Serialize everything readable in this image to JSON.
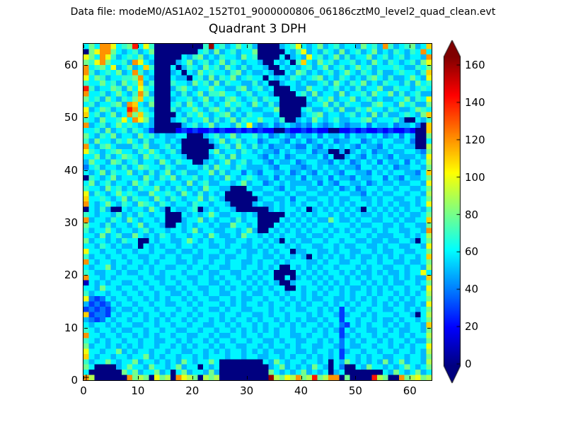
{
  "header": {
    "text": "Data file: modeM0/AS1A02_152T01_9000000806_06186cztM0_level2_quad_clean.evt"
  },
  "chart_data": {
    "type": "heatmap",
    "title": "Quadrant 3 DPH",
    "x_ticks": [
      0,
      10,
      20,
      30,
      40,
      50,
      60
    ],
    "y_ticks": [
      0,
      10,
      20,
      30,
      40,
      50,
      60
    ],
    "x_range": [
      0,
      64
    ],
    "y_range": [
      0,
      64
    ],
    "grid_size": [
      64,
      64
    ],
    "colormap": "jet",
    "colorbar": {
      "ticks": [
        0,
        20,
        40,
        60,
        80,
        100,
        120,
        140,
        160
      ],
      "vmin": 0,
      "vmax": 164,
      "extend": "both"
    },
    "value_encoding": {
      "chars": "0123456789ABCDEFG",
      "value_per_step": 10,
      "note": "each char is one cell; value = index(char)*10 counts; rows listed top (y=63) to bottom (y=0), 64 chars left to right"
    },
    "origin_marker": "+",
    "rows_top_to_bottom": [
      "686CCA678E6A70000000007G675686750000567A656856756658675C7567856B",
      "08ACC86567568000000006758567566800000657A56576585675685 6576576C",
      "A86CA7567685600000657856576658670000605 65A6756857566856 75675665C",
      "87AC86675CA650000568567568576566500656 07B65867566756586 57656758A",
      "C6786A56856B7000605765867586575665006565675685675686756667655768",
      "C75676856C75600056065867665785655650065875656756865765755676657B",
      "A687566778C650006550675857685676606565765678565765657865 7556865A",
      "7668675867B5700076658675857665575600566565567586576856576 6575867",
      "E756687586A76000578656686655785675600065586656756575668557665676",
      "C667568657C850006575685778665675665000067585665856675866 85756755",
      "8675865768B67000566756856578656757660000065768566856756556685 76A",
      "67566785CB65800067586576568676586575000005668575766557866586 7558",
      "A5687566EC76500075668657865756655668000067556758557686657655 6876",
      "B6756856C8B7600006576865678565766556000056785665675658575567658B",
      "7658667A6CA850005675668575685766866570056586567556678566 67500657",
      "C567568676565000005675685665 86A5456456545465456545564655 6455640B",
      "66758567576530000232322323223232322003223232200223232232 3223200B",
      "86576856658675655660005675685667564565465564655646556564 56465008",
      "7586657686575665650000056856756645665465645656455664565665564006",
      "C65786555768556756000000567586575645565446546565654655465 6655009",
      "A765678665768656750000068566576565546565564550050565645565566548",
      "66857568765867656650000567585666546564566556460056546565 4655565A",
      "58665875675665865766005656856756654655645665546564565646 55646569",
      "46756657568766576556657586657655565466554565655655466565 64556658",
      "65685766856575685675566857566465466556456546565466554656 5665546B",
      "07656856665865768566756565865676556465564655646554655664 65465568",
      "68567566586756656658567556656856645656555564654665564565 5655665A",
      "76658675657668565765658665500065566546566556556456456656 65665568",
      "A57656867655866765865756560000066556656556655656655465655 6656659",
      "B667656857665865765668576500000056655646655665655665565665566568",
      "C65686576587657656657665665000056556565656656565656656565655656A",
      "06575006566586506556705656650000005656656056565656506565 65656657",
      "76566575657656600065656865566565000006565656656565655656 56565568",
      "C566576586566560005668565665756600006565656558655656655665 65566B",
      "86657566568566500656566565586656000656565656656665655665 56566558",
      "75668656656756656656856655665685006565656566565656566565 6655665C",
      "66585675586565765665665865565866565656655655656665665655 56656569",
      "85665657660065665568656566556656656506565566566566556556 55665068",
      "66576565560656566566566556566556565665656655665655665565 6655665A",
      "A66566566566566556556566656656556565660556655656655665655 6655668",
      "75665665665566566566556556556656655656565065656565655656 5656656B",
      "C65665665665656665565665665665565665656665565665566566566 5565568",
      "65668565665656655665665665566566565600656565665666565665 56656659",
      "76556656556656566656656556655665656000065656566565655656 556566A",
      "C665656666566556566556656566565656600605656565665656566565 65655B",
      "16565665566566566566566556566565656500566656565656656565 65566568",
      "66586656656656655656655665656656565660065665656565565656 5665665A",
      "75665665665665665565665665566565566565665656566565665656 65656569",
      "A43465665665656566565665566565566566565656556655656565665 6565668",
      "53434656656656655665656665656566565665656566565656566565 6565565A",
      "34343565565665666566566556566556665656655665656365665665 56656568",
      "B34436566565665656656566656656655656656665656653566565666 5665069",
      "54346566566565656656566565656656566565656556566366566565 56566568",
      "65665656655665665665665566565665656656565665656436565665 6565665B",
      "76566565566566566556656656656565656566566656565365665566 56556658",
      "C66566566565656656655665655665665665665565665663565665656 6565669",
      "76565665665665566565665656656656655656655665656465656656 56656558",
      "85665656565665665656566565665566565665656655665465566566 5656566A",
      "A66566856566566566556656565665656565566556566563566566566 5665659",
      "B65665665668565665665656665665665566565665656563665656655 6656658",
      "75668656685665656586566860000000065865665665606586565658 56856659",
      "86000056866586656856606560000000005685656586506400658665 65686568",
      "60000008685668560685665850000000008656568565605600000006 58656856",
      "C9000000C8980A890CA980989000000000G98A9C89E89CC080000E980 0C89A897"
    ]
  },
  "colors": {
    "background": "#ffffff",
    "axis": "#000000",
    "text": "#000000"
  }
}
